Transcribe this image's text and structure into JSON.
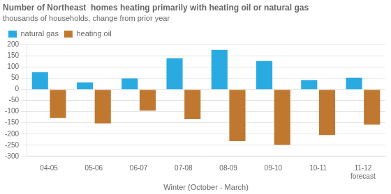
{
  "chart_data": {
    "type": "bar",
    "title": "Number of Northeast  homes heating primarily with heating oil or natural gas",
    "subtitle": "thousands of households, change from prior year",
    "xlabel": "Winter (October - March)",
    "categories": [
      "04-05",
      "05-06",
      "06-07",
      "07-08",
      "08-09",
      "09-10",
      "10-11",
      "11-12\nforecast"
    ],
    "series": [
      {
        "name": "natural gas",
        "color": "#29ABE2",
        "values": [
          78,
          32,
          50,
          140,
          178,
          128,
          42,
          53
        ]
      },
      {
        "name": "heating oil",
        "color": "#C07830",
        "values": [
          -128,
          -152,
          -95,
          -132,
          -232,
          -248,
          -205,
          -158
        ]
      }
    ],
    "ylim": [
      -300,
      200
    ],
    "yticks": [
      -300,
      -250,
      -200,
      -150,
      -100,
      -50,
      0,
      50,
      100,
      150,
      200
    ],
    "grid": true,
    "legend": "upper left"
  }
}
